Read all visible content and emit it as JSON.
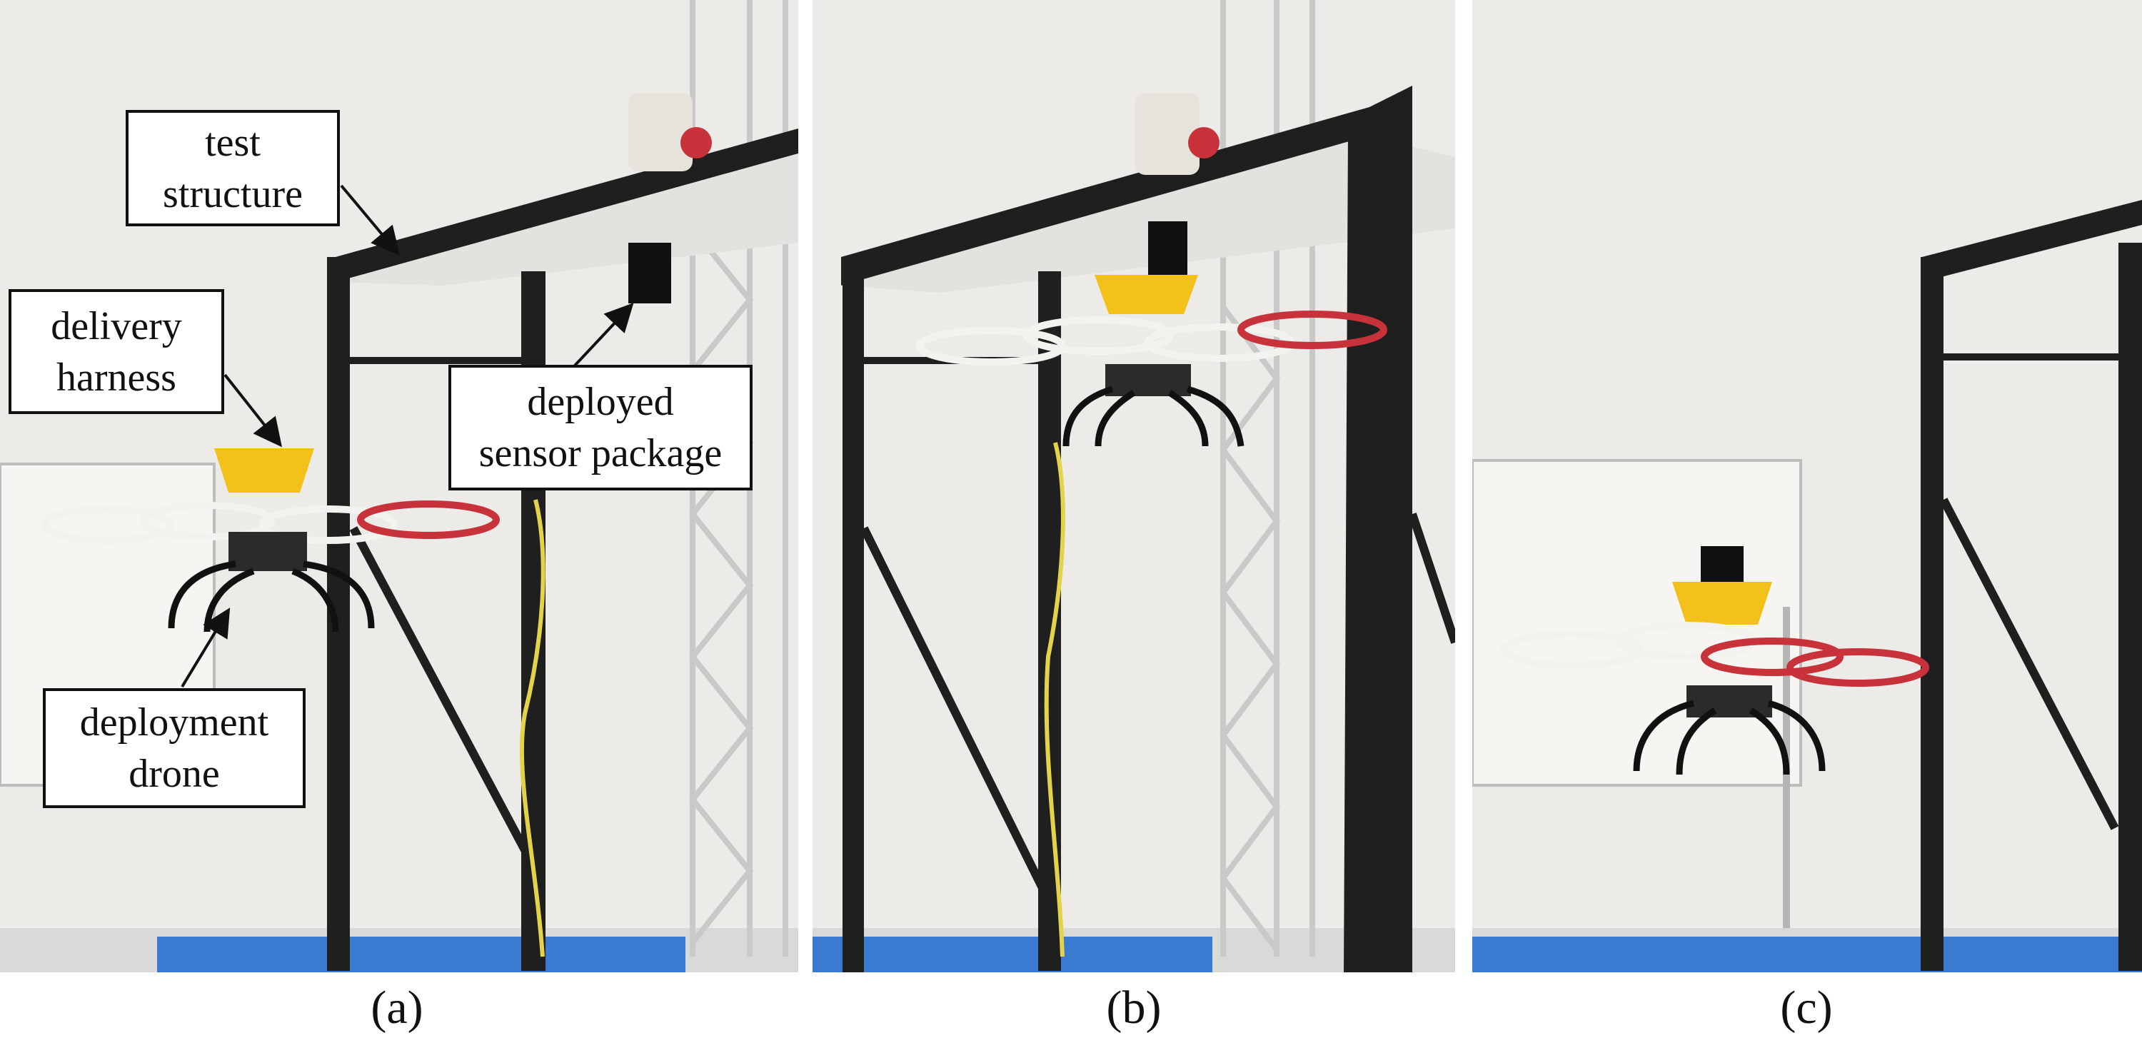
{
  "captions": {
    "a": "(a)",
    "b": "(b)",
    "c": "(c)"
  },
  "callouts": {
    "test_structure": [
      "test",
      "structure"
    ],
    "delivery_harness": [
      "delivery",
      "harness"
    ],
    "deployed_sensor_package": [
      "deployed",
      "sensor package"
    ],
    "deployment_drone": [
      "deployment",
      "drone"
    ]
  },
  "colors": {
    "wall": "#ecebe7",
    "shelf_frame": "#1f1f1f",
    "truss": "#c9c9c9",
    "harness_yellow": "#f2c21a",
    "prop_guard_white": "#f4f2ee",
    "prop_guard_red": "#c8323a",
    "floor_mat_blue": "#3a7ad1",
    "cable_yellow": "#e3d34a"
  }
}
